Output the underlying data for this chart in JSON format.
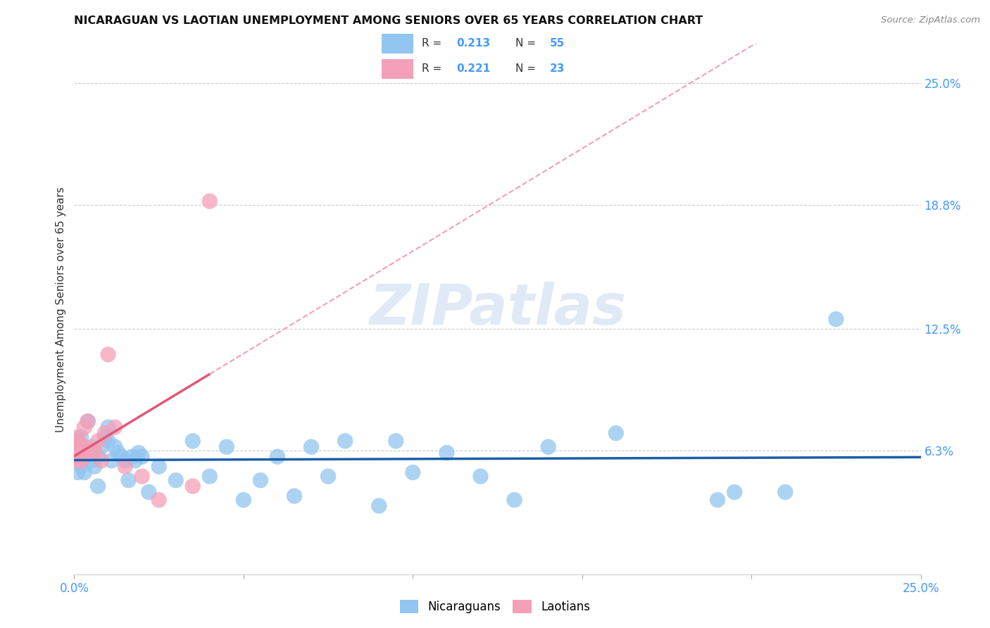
{
  "title": "NICARAGUAN VS LAOTIAN UNEMPLOYMENT AMONG SENIORS OVER 65 YEARS CORRELATION CHART",
  "source": "Source: ZipAtlas.com",
  "ylabel": "Unemployment Among Seniors over 65 years",
  "xlim": [
    0.0,
    0.25
  ],
  "ylim": [
    0.0,
    0.27
  ],
  "right_ytick_labels": [
    "25.0%",
    "18.8%",
    "12.5%",
    "6.3%"
  ],
  "right_ytick_values": [
    0.25,
    0.188,
    0.125,
    0.063
  ],
  "nicaraguan_color": "#92C5F0",
  "laotian_color": "#F4A0B8",
  "nicaraguan_line_color": "#1A5EA8",
  "laotian_line_solid_color": "#E05878",
  "laotian_line_dash_color": "#F0A0B8",
  "blue_r": 0.213,
  "blue_n": 55,
  "pink_r": 0.221,
  "pink_n": 23,
  "watermark": "ZIPatlas",
  "nic_x": [
    0.001,
    0.001,
    0.001,
    0.001,
    0.001,
    0.002,
    0.002,
    0.002,
    0.003,
    0.003,
    0.004,
    0.005,
    0.005,
    0.006,
    0.007,
    0.007,
    0.008,
    0.009,
    0.01,
    0.01,
    0.011,
    0.012,
    0.013,
    0.014,
    0.015,
    0.016,
    0.017,
    0.018,
    0.019,
    0.02,
    0.022,
    0.025,
    0.03,
    0.035,
    0.04,
    0.045,
    0.05,
    0.055,
    0.06,
    0.065,
    0.07,
    0.075,
    0.08,
    0.09,
    0.095,
    0.1,
    0.11,
    0.12,
    0.13,
    0.14,
    0.16,
    0.19,
    0.195,
    0.21,
    0.225
  ],
  "nic_y": [
    0.068,
    0.062,
    0.057,
    0.052,
    0.065,
    0.058,
    0.055,
    0.07,
    0.052,
    0.06,
    0.078,
    0.058,
    0.065,
    0.055,
    0.06,
    0.045,
    0.065,
    0.07,
    0.068,
    0.075,
    0.058,
    0.065,
    0.062,
    0.06,
    0.058,
    0.048,
    0.06,
    0.058,
    0.062,
    0.06,
    0.042,
    0.055,
    0.048,
    0.068,
    0.05,
    0.065,
    0.038,
    0.048,
    0.06,
    0.04,
    0.065,
    0.05,
    0.068,
    0.035,
    0.068,
    0.052,
    0.062,
    0.05,
    0.038,
    0.065,
    0.072,
    0.038,
    0.042,
    0.042,
    0.13
  ],
  "lao_x": [
    0.001,
    0.001,
    0.001,
    0.001,
    0.001,
    0.002,
    0.002,
    0.002,
    0.003,
    0.003,
    0.004,
    0.005,
    0.006,
    0.007,
    0.008,
    0.009,
    0.01,
    0.012,
    0.015,
    0.02,
    0.025,
    0.035,
    0.04
  ],
  "lao_y": [
    0.068,
    0.063,
    0.058,
    0.07,
    0.06,
    0.058,
    0.065,
    0.06,
    0.075,
    0.065,
    0.078,
    0.063,
    0.063,
    0.068,
    0.058,
    0.072,
    0.112,
    0.075,
    0.055,
    0.05,
    0.038,
    0.045,
    0.19
  ]
}
